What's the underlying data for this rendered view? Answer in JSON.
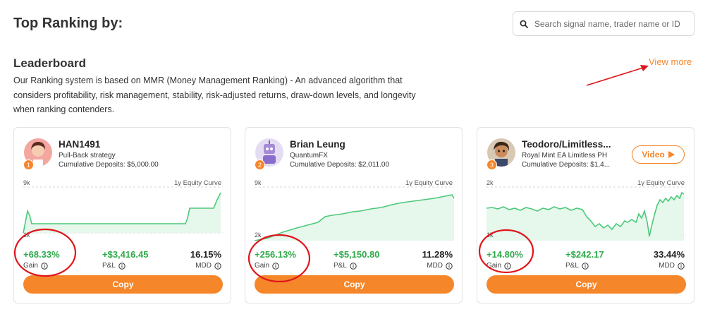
{
  "header": {
    "title": "Top Ranking by:",
    "search_placeholder": "Search signal name, trader name or ID"
  },
  "leaderboard": {
    "title": "Leaderboard",
    "description": "Our Ranking system is based on MMR (Money Management Ranking) - An advanced algorithm that considers profitability, risk management, stability, risk-adjusted returns, draw-down levels, and longevity when ranking contenders.",
    "view_more": "View more"
  },
  "labels": {
    "equity_curve": "1y Equity Curve",
    "gain": "Gain",
    "pnl": "P&L",
    "mdd": "MDD",
    "copy": "Copy",
    "video": "Video"
  },
  "colors": {
    "accent": "#f5862a",
    "positive": "#2eaa4a",
    "curve": "#4cc97a",
    "annotation": "#e0151b"
  },
  "icons": {
    "search": "search-icon",
    "info": "info-icon",
    "play": "play-icon",
    "arrow": "annotation-arrow"
  },
  "cards": [
    {
      "rank": "1",
      "name": "HAN1491",
      "strategy": "Pull-Back strategy",
      "deposits": "Cumulative Deposits: $5,000.00",
      "y_max_label": "9k",
      "y_min_label": "1k",
      "gain": "+68.33%",
      "pnl": "+$3,416.45",
      "mdd": "16.15%",
      "avatar": "female-avatar",
      "has_video": false
    },
    {
      "rank": "2",
      "name": "Brian Leung",
      "strategy": "QuantumFX",
      "deposits": "Cumulative Deposits: $2,011.00",
      "y_max_label": "9k",
      "y_min_label": "2k",
      "gain": "+256.13%",
      "pnl": "+$5,150.80",
      "mdd": "11.28%",
      "avatar": "robot-avatar",
      "has_video": false
    },
    {
      "rank": "3",
      "name": "Teodoro/Limitless...",
      "strategy": "Royal Mint EA Limitless PH",
      "deposits": "Cumulative Deposits: $1,4...",
      "y_max_label": "2k",
      "y_min_label": "1k",
      "gain": "+14.80%",
      "pnl": "+$242.17",
      "mdd": "33.44%",
      "avatar": "male-avatar",
      "has_video": true
    }
  ]
}
